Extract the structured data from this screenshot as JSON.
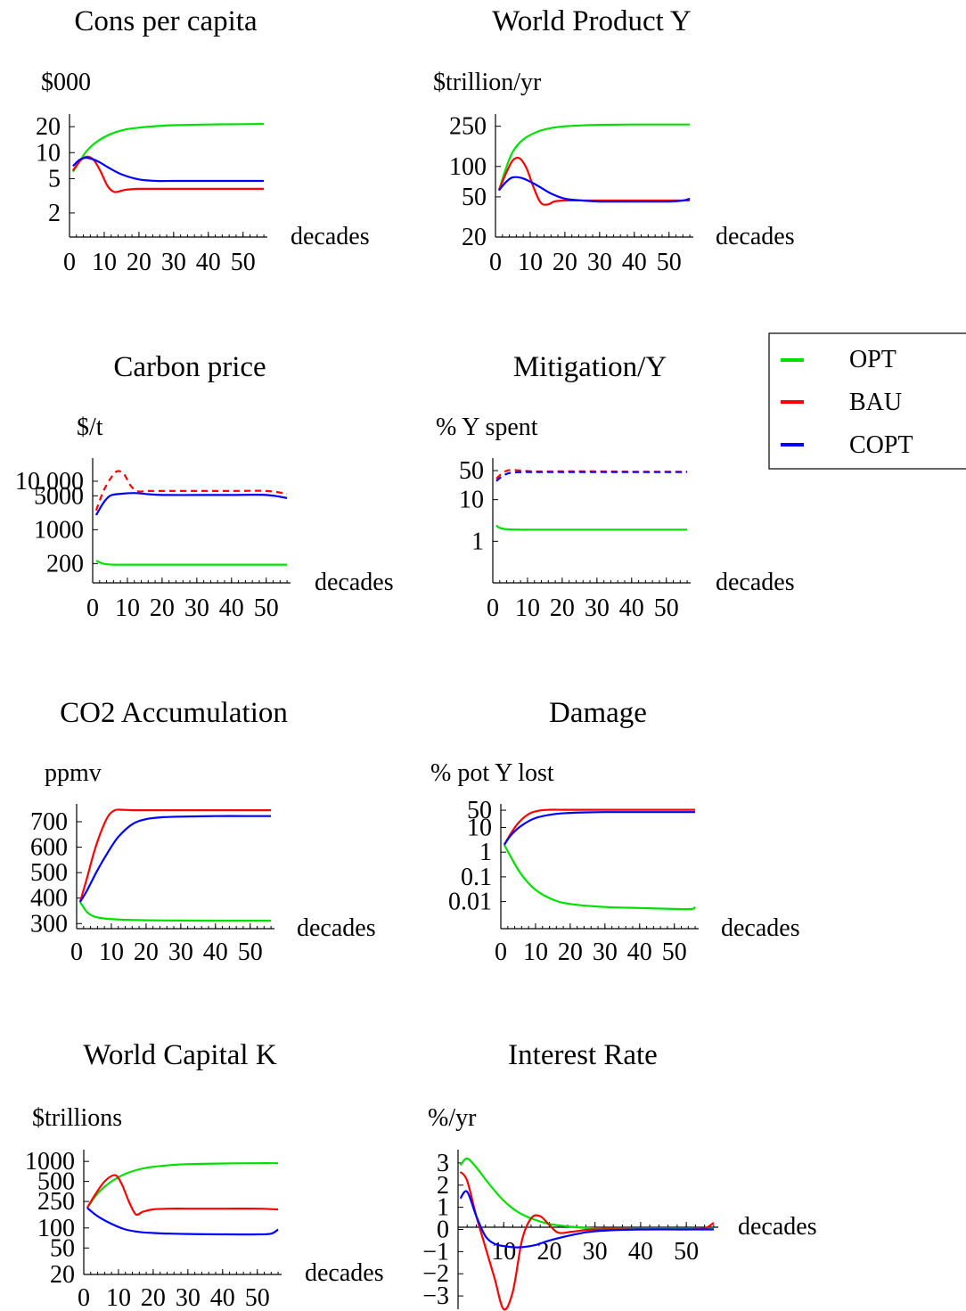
{
  "legend": {
    "entries": [
      {
        "label": "OPT",
        "color": "#00e000"
      },
      {
        "label": "BAU",
        "color": "#ff0000"
      },
      {
        "label": "COPT",
        "color": "#0000ff"
      }
    ]
  },
  "chart_data": [
    {
      "id": "cons",
      "type": "line",
      "title": "Cons per capita",
      "ylabel": "$000",
      "xlabel": "decades",
      "yscale": "log",
      "ylim": [
        1.05,
        28
      ],
      "xlim": [
        0,
        57
      ],
      "xticks": [
        0,
        10,
        20,
        30,
        40,
        50
      ],
      "xtick_labels": [
        "0",
        "10",
        "20",
        "30",
        "40",
        "50"
      ],
      "yticks": [
        2,
        5,
        10,
        20
      ],
      "ytick_labels": [
        "2",
        "5",
        "10",
        "20"
      ],
      "series": [
        {
          "name": "OPT",
          "color": "#00e000",
          "x": [
            1,
            3,
            5,
            8,
            12,
            16,
            20,
            25,
            30,
            40,
            50,
            56
          ],
          "y": [
            6,
            8,
            10.5,
            13.5,
            16.5,
            18.5,
            19.5,
            20.3,
            20.8,
            21.2,
            21.4,
            21.5
          ]
        },
        {
          "name": "BAU",
          "color": "#ff0000",
          "x": [
            1,
            3,
            5,
            7,
            9,
            11,
            13,
            16,
            20,
            30,
            40,
            50,
            56
          ],
          "y": [
            6.2,
            8,
            9,
            8.2,
            6,
            4.1,
            3.5,
            3.7,
            3.8,
            3.8,
            3.8,
            3.8,
            3.8
          ]
        },
        {
          "name": "COPT",
          "color": "#0000ff",
          "x": [
            1,
            3,
            5,
            8,
            11,
            15,
            20,
            25,
            30,
            40,
            50,
            56
          ],
          "y": [
            7,
            8.3,
            8.7,
            8,
            6.8,
            5.6,
            4.9,
            4.7,
            4.7,
            4.7,
            4.7,
            4.7
          ]
        }
      ]
    },
    {
      "id": "wp",
      "type": "line",
      "title": "World Product Y",
      "ylabel": "$trillion/yr",
      "xlabel": "decades",
      "yscale": "log",
      "ylim": [
        20,
        330
      ],
      "xlim": [
        0,
        57
      ],
      "xticks": [
        0,
        10,
        20,
        30,
        40,
        50
      ],
      "xtick_labels": [
        "0",
        "10",
        "20",
        "30",
        "40",
        "50"
      ],
      "yticks": [
        20,
        50,
        100,
        250
      ],
      "ytick_labels": [
        "20",
        "50",
        "100",
        "250"
      ],
      "series": [
        {
          "name": "OPT",
          "color": "#00e000",
          "x": [
            1,
            3,
            5,
            8,
            12,
            16,
            20,
            25,
            30,
            40,
            50,
            56
          ],
          "y": [
            58,
            95,
            140,
            185,
            220,
            240,
            250,
            255,
            258,
            260,
            260,
            260
          ]
        },
        {
          "name": "BAU",
          "color": "#ff0000",
          "x": [
            1,
            3,
            5,
            7,
            9,
            11,
            13,
            15,
            17,
            20,
            30,
            40,
            50,
            56
          ],
          "y": [
            58,
            85,
            115,
            120,
            95,
            62,
            44,
            42,
            45,
            46,
            46,
            46,
            46,
            46
          ]
        },
        {
          "name": "COPT",
          "color": "#0000ff",
          "x": [
            1,
            3,
            5,
            8,
            12,
            16,
            20,
            25,
            30,
            40,
            50,
            54,
            56
          ],
          "y": [
            58,
            70,
            78,
            76,
            65,
            54,
            48,
            46,
            45,
            45,
            45,
            46,
            48
          ]
        }
      ]
    },
    {
      "id": "cp",
      "type": "line",
      "title": "Carbon price",
      "ylabel": "$/t",
      "xlabel": "decades",
      "yscale": "log",
      "ylim": [
        80,
        30000
      ],
      "xlim": [
        0,
        57
      ],
      "xticks": [
        0,
        10,
        20,
        30,
        40,
        50
      ],
      "xtick_labels": [
        "0",
        "10",
        "20",
        "30",
        "40",
        "50"
      ],
      "yticks": [
        200,
        1000,
        5000,
        10000
      ],
      "ytick_labels": [
        "200",
        "1000",
        "5000",
        "10,000"
      ],
      "series": [
        {
          "name": "OPT",
          "color": "#00e000",
          "x": [
            1,
            3,
            6,
            10,
            20,
            30,
            40,
            50,
            56
          ],
          "y": [
            230,
            200,
            190,
            190,
            190,
            190,
            190,
            190,
            190
          ]
        },
        {
          "name": "BAU",
          "color": "#ff0000",
          "dashed": true,
          "x": [
            1,
            3,
            5,
            7,
            9,
            11,
            13,
            16,
            20,
            30,
            40,
            50,
            56
          ],
          "y": [
            2500,
            6000,
            11000,
            16000,
            14000,
            8000,
            6200,
            6300,
            6300,
            6300,
            6300,
            6300,
            5500
          ]
        },
        {
          "name": "COPT",
          "color": "#0000ff",
          "x": [
            1,
            3,
            5,
            8,
            12,
            16,
            20,
            30,
            40,
            50,
            56
          ],
          "y": [
            2000,
            3500,
            5000,
            5500,
            5700,
            5400,
            5200,
            5200,
            5200,
            5200,
            4500
          ]
        }
      ]
    },
    {
      "id": "mit",
      "type": "line",
      "title": "Mitigation/Y",
      "ylabel": "% Y spent",
      "xlabel": "decades",
      "yscale": "log",
      "ylim": [
        0.1,
        100
      ],
      "xlim": [
        0,
        57
      ],
      "xticks": [
        0,
        10,
        20,
        30,
        40,
        50
      ],
      "xtick_labels": [
        "0",
        "10",
        "20",
        "30",
        "40",
        "50"
      ],
      "yticks": [
        1,
        10,
        50
      ],
      "ytick_labels": [
        "1",
        "10",
        "50"
      ],
      "series": [
        {
          "name": "OPT",
          "color": "#00e000",
          "x": [
            1,
            2,
            4,
            8,
            12,
            20,
            30,
            40,
            50,
            56
          ],
          "y": [
            2.4,
            2.1,
            1.95,
            1.9,
            1.9,
            1.9,
            1.9,
            1.9,
            1.9,
            1.9
          ]
        },
        {
          "name": "BAU",
          "color": "#ff0000",
          "dashed": true,
          "x": [
            1,
            3,
            5,
            8,
            12,
            20,
            30,
            40,
            50,
            56
          ],
          "y": [
            32,
            45,
            52,
            50,
            48,
            48,
            48,
            47,
            47,
            47
          ]
        },
        {
          "name": "COPT",
          "color": "#0000ff",
          "dashed": true,
          "x": [
            1,
            3,
            5,
            8,
            12,
            20,
            30,
            40,
            50,
            56
          ],
          "y": [
            28,
            38,
            44,
            46,
            46,
            46,
            46,
            46,
            46,
            46
          ]
        }
      ]
    },
    {
      "id": "co2",
      "type": "line",
      "title": "CO2 Accumulation",
      "ylabel": "ppmv",
      "xlabel": "decades",
      "yscale": "linear",
      "ylim": [
        280,
        770
      ],
      "xlim": [
        0,
        57
      ],
      "xticks": [
        0,
        10,
        20,
        30,
        40,
        50
      ],
      "xtick_labels": [
        "0",
        "10",
        "20",
        "30",
        "40",
        "50"
      ],
      "yticks": [
        300,
        400,
        500,
        600,
        700
      ],
      "ytick_labels": [
        "300",
        "400",
        "500",
        "600",
        "700"
      ],
      "series": [
        {
          "name": "OPT",
          "color": "#00e000",
          "x": [
            1,
            3,
            5,
            8,
            12,
            16,
            20,
            30,
            40,
            50,
            56
          ],
          "y": [
            385,
            345,
            328,
            320,
            316,
            314,
            313,
            312,
            311,
            311,
            311
          ]
        },
        {
          "name": "BAU",
          "color": "#ff0000",
          "x": [
            1,
            3,
            5,
            7,
            9,
            11,
            13,
            16,
            20,
            30,
            40,
            50,
            56
          ],
          "y": [
            385,
            480,
            580,
            660,
            720,
            745,
            747,
            745,
            745,
            745,
            745,
            745,
            745
          ]
        },
        {
          "name": "COPT",
          "color": "#0000ff",
          "x": [
            1,
            3,
            6,
            9,
            12,
            16,
            20,
            25,
            30,
            40,
            50,
            56
          ],
          "y": [
            385,
            430,
            510,
            580,
            640,
            690,
            710,
            718,
            720,
            722,
            722,
            722
          ]
        }
      ]
    },
    {
      "id": "dmg",
      "type": "line",
      "title": "Damage",
      "ylabel": "% pot Y lost",
      "xlabel": "decades",
      "yscale": "log",
      "ylim": [
        0.0008,
        90
      ],
      "xlim": [
        0,
        57
      ],
      "xticks": [
        0,
        10,
        20,
        30,
        40,
        50
      ],
      "xtick_labels": [
        "0",
        "10",
        "20",
        "30",
        "40",
        "50"
      ],
      "yticks": [
        0.01,
        0.1,
        1,
        10,
        50
      ],
      "ytick_labels": [
        "0.01",
        "0.1",
        "1",
        "10",
        "50"
      ],
      "series": [
        {
          "name": "OPT",
          "color": "#00e000",
          "x": [
            1,
            3,
            6,
            10,
            15,
            20,
            30,
            40,
            50,
            55,
            56
          ],
          "y": [
            2,
            0.6,
            0.12,
            0.03,
            0.012,
            0.008,
            0.006,
            0.0055,
            0.005,
            0.005,
            0.006
          ]
        },
        {
          "name": "BAU",
          "color": "#ff0000",
          "x": [
            1,
            3,
            5,
            8,
            11,
            14,
            18,
            25,
            30,
            40,
            50,
            56
          ],
          "y": [
            2,
            6,
            15,
            35,
            48,
            52,
            52,
            52,
            52,
            52,
            52,
            52
          ]
        },
        {
          "name": "COPT",
          "color": "#0000ff",
          "x": [
            1,
            3,
            6,
            10,
            15,
            20,
            25,
            30,
            40,
            50,
            56
          ],
          "y": [
            2,
            5,
            12,
            24,
            34,
            39,
            41,
            42,
            42,
            42,
            42
          ]
        }
      ]
    },
    {
      "id": "cap",
      "type": "line",
      "title": "World Capital K",
      "ylabel": "$trillions",
      "xlabel": "decades",
      "yscale": "log",
      "ylim": [
        20,
        1500
      ],
      "xlim": [
        0,
        57
      ],
      "xticks": [
        0,
        10,
        20,
        30,
        40,
        50
      ],
      "xtick_labels": [
        "0",
        "10",
        "20",
        "30",
        "40",
        "50"
      ],
      "yticks": [
        20,
        50,
        100,
        250,
        500,
        1000
      ],
      "ytick_labels": [
        "20",
        "50",
        "100",
        "250",
        "500",
        "1000"
      ],
      "series": [
        {
          "name": "OPT",
          "color": "#00e000",
          "x": [
            1,
            4,
            8,
            12,
            16,
            20,
            25,
            30,
            40,
            50,
            56
          ],
          "y": [
            200,
            330,
            500,
            650,
            760,
            830,
            880,
            910,
            930,
            940,
            940
          ]
        },
        {
          "name": "BAU",
          "color": "#ff0000",
          "x": [
            1,
            3,
            6,
            9,
            11,
            13,
            15,
            17,
            20,
            25,
            30,
            40,
            50,
            56
          ],
          "y": [
            200,
            300,
            500,
            620,
            450,
            250,
            160,
            175,
            190,
            195,
            195,
            195,
            195,
            190
          ]
        },
        {
          "name": "COPT",
          "color": "#0000ff",
          "x": [
            1,
            4,
            8,
            12,
            16,
            20,
            25,
            30,
            40,
            50,
            54,
            56
          ],
          "y": [
            200,
            150,
            115,
            95,
            87,
            84,
            82,
            81,
            80,
            80,
            82,
            95
          ]
        }
      ]
    },
    {
      "id": "int",
      "type": "line",
      "title": "Interest Rate",
      "ylabel": "%/yr",
      "xlabel": "decades",
      "yscale": "linear",
      "ylim": [
        -3.6,
        3.6
      ],
      "xlim": [
        0,
        57
      ],
      "xticks": [
        10,
        20,
        30,
        40,
        50
      ],
      "xtick_labels": [
        "10",
        "20",
        "30",
        "40",
        "50"
      ],
      "yticks": [
        -3,
        -2,
        -1,
        0,
        1,
        2,
        3
      ],
      "ytick_labels": [
        "−3",
        "−2",
        "−1",
        "0",
        "1",
        "2",
        "3"
      ],
      "series": [
        {
          "name": "OPT",
          "color": "#00e000",
          "x": [
            0.5,
            2,
            4,
            7,
            10,
            13,
            16,
            20,
            25,
            30,
            40,
            50,
            56
          ],
          "y": [
            2.9,
            3.2,
            2.8,
            2.0,
            1.3,
            0.8,
            0.5,
            0.25,
            0.12,
            0.05,
            0.02,
            0.02,
            0.05
          ]
        },
        {
          "name": "BAU",
          "color": "#ff0000",
          "x": [
            0.5,
            2,
            4,
            6,
            8,
            10,
            12,
            14,
            16,
            18,
            20,
            22,
            25,
            30,
            40,
            50,
            54,
            56
          ],
          "y": [
            2.6,
            2.2,
            0.6,
            -0.8,
            -2.2,
            -3.6,
            -2.8,
            -0.5,
            0.5,
            0.6,
            0.2,
            -0.15,
            -0.1,
            0,
            0,
            0,
            0.05,
            0.3
          ]
        },
        {
          "name": "COPT",
          "color": "#0000ff",
          "x": [
            0.5,
            2,
            4,
            6,
            8,
            10,
            12,
            14,
            17,
            20,
            25,
            30,
            40,
            50,
            56
          ],
          "y": [
            1.4,
            1.7,
            0.6,
            -0.3,
            -0.65,
            -0.75,
            -0.8,
            -0.8,
            -0.7,
            -0.5,
            -0.25,
            -0.08,
            0,
            0,
            0
          ]
        }
      ]
    }
  ]
}
